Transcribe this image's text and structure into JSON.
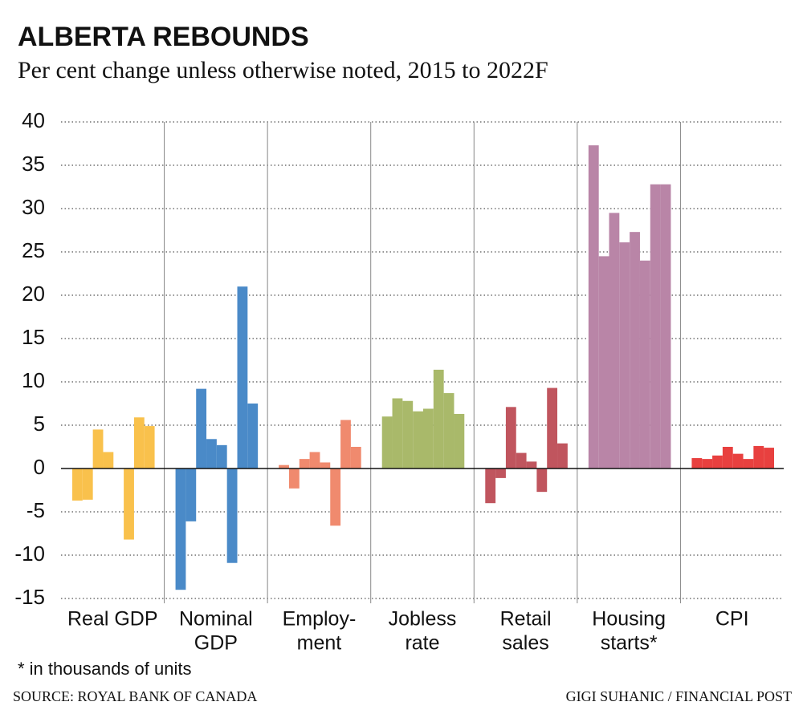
{
  "chart_data": {
    "type": "bar",
    "title": "ALBERTA REBOUNDS",
    "subtitle": "Per cent change unless otherwise noted, 2015 to 2022F",
    "ylim": [
      -15,
      40
    ],
    "yticks": [
      40,
      35,
      30,
      25,
      20,
      15,
      10,
      5,
      0,
      -5,
      -10,
      -15
    ],
    "grid": true,
    "groups": [
      {
        "label": [
          "Real GDP"
        ],
        "color": "#f9c14c",
        "values": [
          -3.7,
          -3.6,
          4.5,
          1.9,
          0,
          -8.2,
          5.9,
          4.9
        ]
      },
      {
        "label": [
          "Nominal",
          "GDP"
        ],
        "color": "#4a8ac8",
        "values": [
          -14,
          -6.1,
          9.2,
          3.4,
          2.7,
          -10.9,
          21,
          7.5
        ]
      },
      {
        "label": [
          "Employ-",
          "ment"
        ],
        "color": "#f08a6e",
        "values": [
          0.4,
          -2.3,
          1.1,
          1.9,
          0.7,
          -6.6,
          5.6,
          2.5
        ]
      },
      {
        "label": [
          "Jobless",
          "rate"
        ],
        "color": "#a9b96a",
        "values": [
          6.0,
          8.1,
          7.8,
          6.6,
          6.9,
          11.4,
          8.7,
          6.3
        ]
      },
      {
        "label": [
          "Retail",
          "sales"
        ],
        "color": "#c0555e",
        "values": [
          -4.0,
          -1.1,
          7.1,
          1.8,
          0.8,
          -2.7,
          9.3,
          2.9
        ]
      },
      {
        "label": [
          "Housing",
          "starts*"
        ],
        "color": "#b985a7",
        "values": [
          37.3,
          24.5,
          29.5,
          26.1,
          27.3,
          24.0,
          32.8,
          32.8
        ]
      },
      {
        "label": [
          "CPI"
        ],
        "color": "#e8403f",
        "values": [
          1.2,
          1.1,
          1.5,
          2.5,
          1.7,
          1.1,
          2.6,
          2.4
        ]
      }
    ],
    "note": "* in thousands of units",
    "source": "SOURCE: ROYAL BANK OF CANADA",
    "credit": "GIGI SUHANIC / FINANCIAL POST"
  }
}
